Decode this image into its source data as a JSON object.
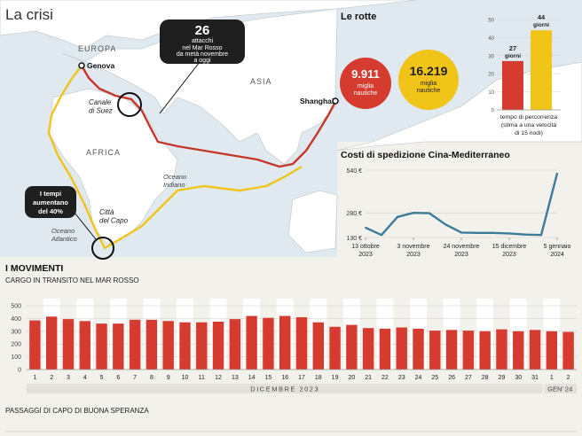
{
  "title": "La crisi",
  "map": {
    "continents": [
      "EUROPA",
      "ASIA",
      "AFRICA"
    ],
    "cities": {
      "genoa": "Genova",
      "shanghai": "Shanghai",
      "cape": "Città\ndel Capo"
    },
    "places": {
      "suez": "Canale\ndi Suez",
      "indian": "Oceano\nIndiano",
      "atlantic": "Oceano\nAtlantico"
    },
    "callout_attacks": {
      "number": "26",
      "line1": "attacchi",
      "line2": "nel Mar Rosso",
      "line3": "da metà novembre",
      "line4": "a oggi"
    },
    "callout_time": {
      "line1": "I tempi",
      "line2": "aumentano",
      "line3": "del 40%"
    }
  },
  "routes": {
    "title": "Le rotte",
    "red": {
      "value": "9.911",
      "line1": "miglia",
      "line2": "nautiche"
    },
    "yellow": {
      "value": "16.219",
      "line1": "miglia",
      "line2": "nautiche"
    }
  },
  "duration_chart": {
    "y_ticks": [
      "0",
      "10",
      "20",
      "30",
      "40",
      "50"
    ],
    "bars": [
      {
        "value": 27,
        "line1": "27",
        "line2": "giorni",
        "color": "#d63b2f"
      },
      {
        "value": 44,
        "line1": "44",
        "line2": "giorni",
        "color": "#f0c419"
      }
    ],
    "caption1": "tempo di percorrenza",
    "caption2": "(stima a una velocità",
    "caption3": "di 15 nodi)"
  },
  "chart_data": [
    {
      "type": "line",
      "title": "Costi di spedizione Cina-Mediterraneo",
      "y_ticks": [
        {
          "value": 130,
          "label": "130 €"
        },
        {
          "value": 280,
          "label": "280 €"
        },
        {
          "value": 540,
          "label": "540 €"
        }
      ],
      "ylim": [
        130,
        540
      ],
      "x_labels": [
        {
          "line1": "13 ottobre",
          "line2": "2023"
        },
        {
          "line1": "3 novembre",
          "line2": "2023"
        },
        {
          "line1": "24 novembre",
          "line2": "2023"
        },
        {
          "line1": "15 dicembre",
          "line2": "2023"
        },
        {
          "line1": "5 gennaio",
          "line2": "2024"
        }
      ],
      "x": [
        "2023-10-13",
        "2023-10-20",
        "2023-10-27",
        "2023-11-03",
        "2023-11-10",
        "2023-11-17",
        "2023-11-24",
        "2023-12-01",
        "2023-12-08",
        "2023-12-15",
        "2023-12-22",
        "2023-12-29",
        "2024-01-05"
      ],
      "values": [
        190,
        145,
        255,
        280,
        278,
        210,
        160,
        158,
        158,
        155,
        148,
        145,
        520
      ],
      "color": "#3d7b99"
    },
    {
      "type": "bar",
      "section_title": "I MOVIMENTI",
      "title": "CARGO IN TRANSITO NEL MAR ROSSO",
      "y_ticks": [
        "0",
        "100",
        "200",
        "300",
        "400",
        "500"
      ],
      "ylim": [
        0,
        500
      ],
      "categories": [
        "1",
        "2",
        "3",
        "4",
        "5",
        "6",
        "7",
        "8",
        "9",
        "10",
        "11",
        "12",
        "13",
        "14",
        "15",
        "16",
        "17",
        "18",
        "19",
        "20",
        "21",
        "22",
        "23",
        "24",
        "25",
        "26",
        "27",
        "28",
        "29",
        "30",
        "31",
        "1",
        "2"
      ],
      "values": [
        385,
        415,
        395,
        380,
        360,
        360,
        390,
        390,
        380,
        370,
        370,
        375,
        395,
        420,
        405,
        420,
        410,
        370,
        335,
        350,
        325,
        320,
        330,
        320,
        305,
        310,
        305,
        300,
        315,
        300,
        310,
        300,
        295
      ],
      "month_labels": [
        "DICEMBRE 2023",
        "GEN' 24"
      ],
      "color": "#d63b2f"
    },
    {
      "type": "bar",
      "title": "PASSAGGI DI CAPO DI BUONA SPERANZA"
    }
  ]
}
